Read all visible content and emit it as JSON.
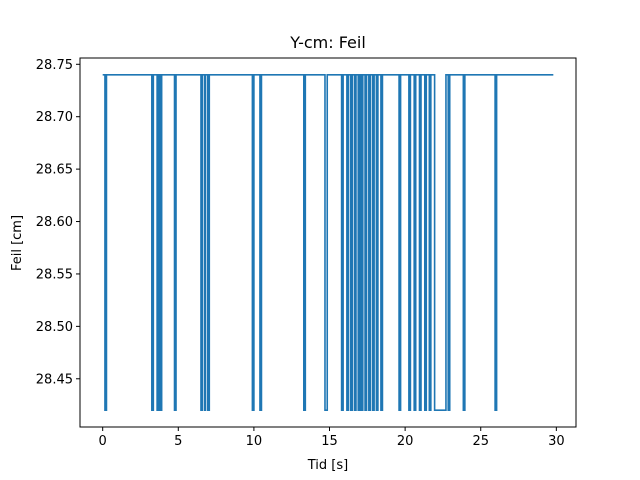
{
  "chart_data": {
    "type": "line",
    "title": "Y-cm: Feil",
    "xlabel": "Tid [s]",
    "ylabel": "Feil [cm]",
    "xlim": [
      -1.5,
      31.3
    ],
    "ylim": [
      28.404,
      28.756
    ],
    "xticks": [
      0,
      5,
      10,
      15,
      20,
      25,
      30
    ],
    "xtick_labels": [
      "0",
      "5",
      "10",
      "15",
      "20",
      "25",
      "30"
    ],
    "yticks": [
      28.45,
      28.5,
      28.55,
      28.6,
      28.65,
      28.7,
      28.75
    ],
    "ytick_labels": [
      "28.45",
      "28.50",
      "28.55",
      "28.60",
      "28.65",
      "28.70",
      "28.75"
    ],
    "grid": false,
    "series": [
      {
        "color": "#1f77b4",
        "high": 28.74,
        "low": 28.42,
        "x_start": 0.0,
        "x_end": 29.8,
        "initial_state": "high",
        "dips": [
          [
            0.15,
            0.25
          ],
          [
            3.25,
            3.35
          ],
          [
            3.6,
            3.7
          ],
          [
            3.8,
            3.9
          ],
          [
            4.75,
            4.85
          ],
          [
            6.5,
            6.6
          ],
          [
            6.75,
            6.8
          ],
          [
            6.95,
            7.05
          ],
          [
            9.9,
            10.0
          ],
          [
            10.4,
            10.5
          ],
          [
            13.3,
            13.4
          ],
          [
            14.7,
            14.85
          ],
          [
            15.8,
            15.9
          ],
          [
            16.15,
            16.25
          ],
          [
            16.4,
            16.5
          ],
          [
            16.65,
            16.75
          ],
          [
            16.9,
            17.0
          ],
          [
            17.1,
            17.2
          ],
          [
            17.35,
            17.45
          ],
          [
            17.6,
            17.7
          ],
          [
            17.85,
            17.95
          ],
          [
            18.1,
            18.2
          ],
          [
            18.4,
            18.5
          ],
          [
            19.6,
            19.7
          ],
          [
            20.25,
            20.35
          ],
          [
            20.6,
            20.7
          ],
          [
            20.95,
            21.05
          ],
          [
            21.3,
            21.4
          ],
          [
            21.6,
            21.7
          ],
          [
            21.95,
            22.7
          ],
          [
            22.85,
            22.95
          ],
          [
            23.85,
            23.95
          ],
          [
            25.95,
            26.05
          ]
        ]
      }
    ]
  }
}
